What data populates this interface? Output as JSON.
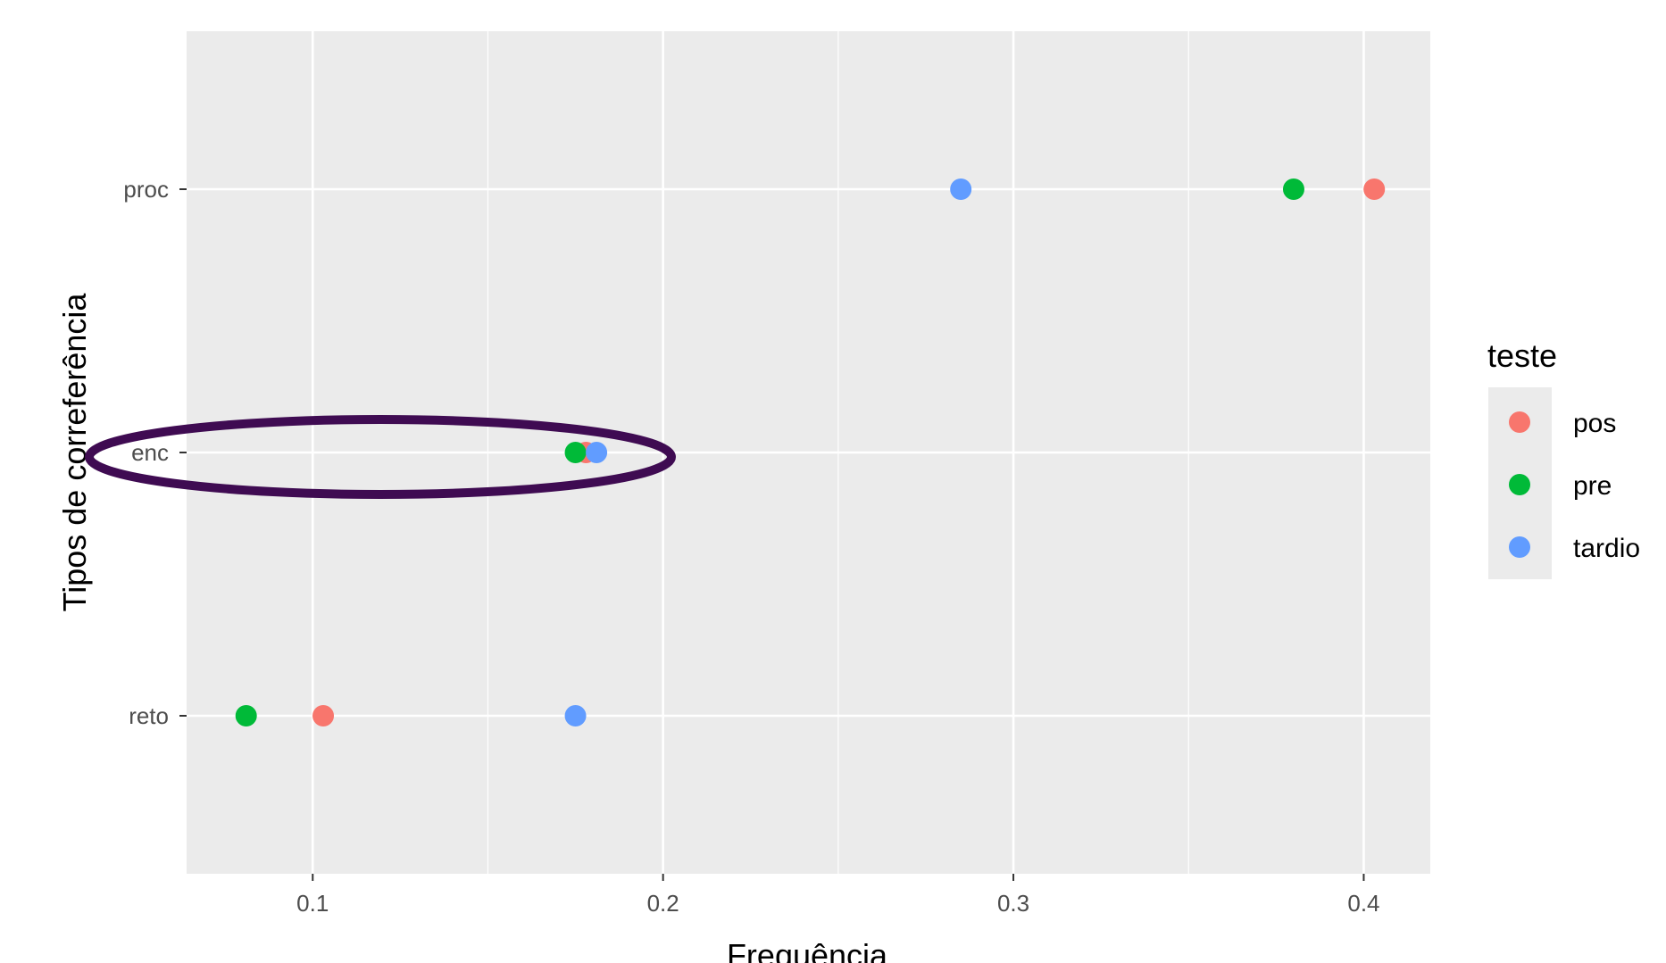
{
  "chart_data": {
    "type": "scatter",
    "title": "",
    "xlabel": "Frequência",
    "ylabel": "Tipos de correferência",
    "xlim": [
      0.064,
      0.419
    ],
    "x_ticks": [
      0.1,
      0.2,
      0.3,
      0.4
    ],
    "x_tick_labels": [
      "0.1",
      "0.2",
      "0.3",
      "0.4"
    ],
    "categories": [
      "reto",
      "enc",
      "proc"
    ],
    "grid": true,
    "legend": {
      "title": "teste",
      "position": "right"
    },
    "series": [
      {
        "name": "pos",
        "color": "#F8766D",
        "points": [
          {
            "y": "proc",
            "x": 0.403
          },
          {
            "y": "enc",
            "x": 0.178
          },
          {
            "y": "reto",
            "x": 0.103
          }
        ]
      },
      {
        "name": "pre",
        "color": "#00BA38",
        "points": [
          {
            "y": "proc",
            "x": 0.38
          },
          {
            "y": "enc",
            "x": 0.175
          },
          {
            "y": "reto",
            "x": 0.081
          }
        ]
      },
      {
        "name": "tardio",
        "color": "#619CFF",
        "points": [
          {
            "y": "proc",
            "x": 0.285
          },
          {
            "y": "enc",
            "x": 0.181
          },
          {
            "y": "reto",
            "x": 0.175
          }
        ]
      }
    ],
    "annotations": [
      {
        "shape": "ellipse",
        "around": "enc",
        "color": "#3F0B52"
      }
    ]
  }
}
